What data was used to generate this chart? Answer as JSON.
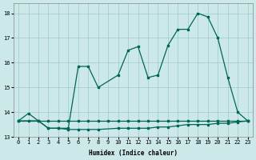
{
  "xlabel": "Humidex (Indice chaleur)",
  "xlim": [
    -0.5,
    23.5
  ],
  "ylim": [
    13.0,
    18.4
  ],
  "yticks": [
    13,
    14,
    15,
    16,
    17,
    18
  ],
  "xticks": [
    0,
    1,
    2,
    3,
    4,
    5,
    6,
    7,
    8,
    9,
    10,
    11,
    12,
    13,
    14,
    15,
    16,
    17,
    18,
    19,
    20,
    21,
    22,
    23
  ],
  "bg_color": "#cce8e8",
  "grid_color": "#99cccc",
  "line_color": "#006655",
  "line1_x": [
    0,
    1,
    2,
    3,
    4,
    5,
    6,
    7,
    8,
    9,
    10,
    11,
    12,
    13,
    14,
    15,
    16,
    17,
    18,
    19,
    20,
    21,
    22,
    23
  ],
  "line1_y": [
    13.65,
    13.65,
    13.65,
    13.65,
    13.65,
    13.65,
    13.65,
    13.65,
    13.65,
    13.65,
    13.65,
    13.65,
    13.65,
    13.65,
    13.65,
    13.65,
    13.65,
    13.65,
    13.65,
    13.65,
    13.65,
    13.65,
    13.65,
    13.65
  ],
  "line2_x": [
    0,
    2,
    3,
    4,
    5,
    6,
    7,
    8,
    10,
    11,
    12,
    13,
    14,
    15,
    16,
    17,
    18,
    19,
    20,
    21,
    22,
    23
  ],
  "line2_y": [
    13.65,
    13.65,
    13.35,
    13.35,
    13.3,
    13.3,
    13.3,
    13.3,
    13.35,
    13.35,
    13.35,
    13.35,
    13.4,
    13.4,
    13.45,
    13.5,
    13.5,
    13.5,
    13.55,
    13.55,
    13.6,
    13.65
  ],
  "line3_x": [
    0,
    1,
    2,
    3,
    4,
    5,
    6,
    7,
    8,
    10,
    11,
    12,
    13,
    14,
    15,
    16,
    17,
    18,
    19,
    20,
    21,
    22,
    23
  ],
  "line3_y": [
    13.65,
    13.95,
    13.65,
    13.35,
    13.35,
    13.35,
    15.85,
    15.85,
    15.0,
    15.5,
    16.5,
    16.65,
    15.4,
    15.5,
    16.7,
    17.35,
    17.35,
    18.0,
    17.85,
    17.0,
    15.4,
    14.0,
    13.65
  ]
}
